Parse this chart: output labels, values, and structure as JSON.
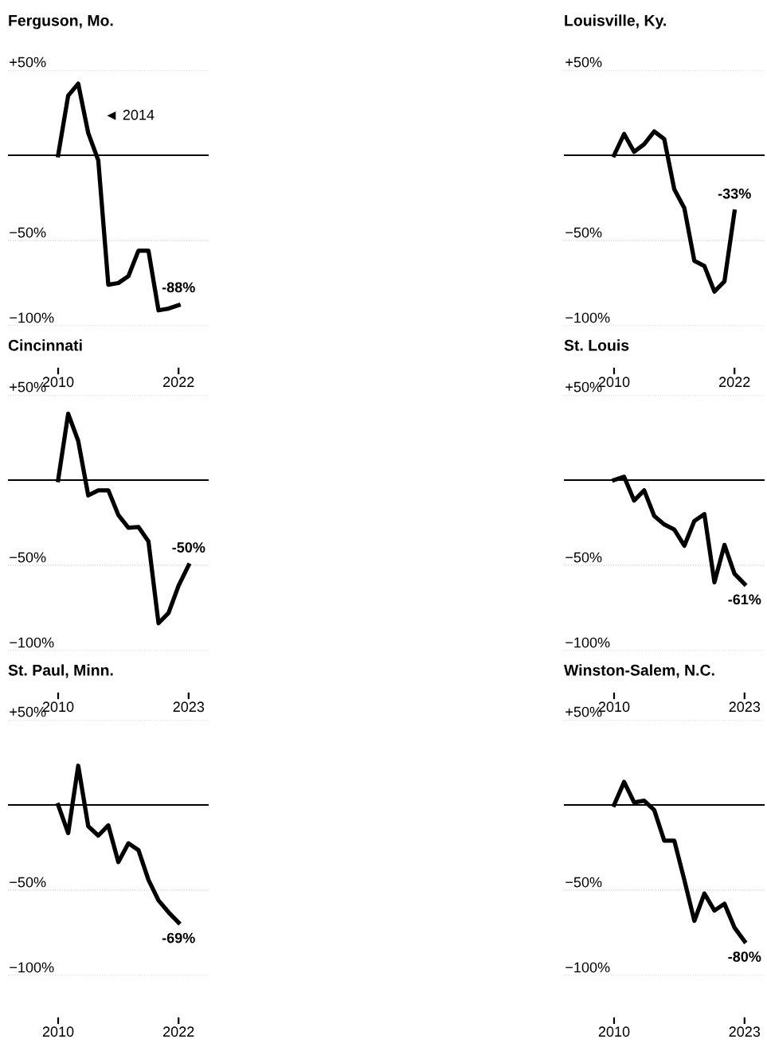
{
  "chart_data": [
    {
      "type": "line",
      "title": "Ferguson, Mo.",
      "x": [
        2010,
        2011,
        2012,
        2013,
        2014,
        2015,
        2016,
        2017,
        2018,
        2019,
        2020,
        2021,
        2022
      ],
      "xlim": [
        2005,
        2025
      ],
      "xticks": [
        2010,
        2022
      ],
      "ylim": [
        -100,
        50
      ],
      "yticks": [
        {
          "value": 50,
          "label": "+50%"
        },
        {
          "value": -50,
          "label": "−50%"
        },
        {
          "value": -100,
          "label": "−100%"
        }
      ],
      "grid": "y",
      "ref_lines": [
        {
          "axis": "y",
          "value": 0,
          "color": "#000000"
        }
      ],
      "annotations": [
        "◄ 2014"
      ],
      "series": [
        {
          "color": "#000000",
          "values": [
            0,
            35,
            42,
            13,
            -3,
            -76,
            -75,
            -71,
            -56,
            -56,
            -91,
            -90,
            -88
          ],
          "value_labels": [
            null,
            null,
            null,
            null,
            null,
            null,
            null,
            null,
            null,
            null,
            null,
            null,
            "-88%"
          ]
        }
      ]
    },
    {
      "type": "line",
      "title": "Louisville, Ky.",
      "x": [
        2010,
        2011,
        2012,
        2013,
        2014,
        2015,
        2016,
        2017,
        2018,
        2019,
        2020,
        2021,
        2022
      ],
      "xlim": [
        2005,
        2025
      ],
      "xticks": [
        2010,
        2022
      ],
      "ylim": [
        -100,
        50
      ],
      "yticks": [
        {
          "value": 50,
          "label": "+50%"
        },
        {
          "value": -50,
          "label": "−50%"
        },
        {
          "value": -100,
          "label": "−100%"
        }
      ],
      "grid": "y",
      "ref_lines": [
        {
          "axis": "y",
          "value": 0,
          "color": "#000000"
        }
      ],
      "series": [
        {
          "color": "#000000",
          "values": [
            0,
            12.5,
            2,
            6.5,
            14,
            9.5,
            -20,
            -31,
            -62,
            -65,
            -80,
            -74,
            -33
          ],
          "value_labels": [
            null,
            null,
            null,
            null,
            null,
            null,
            null,
            null,
            null,
            null,
            null,
            null,
            "-33%"
          ]
        }
      ]
    },
    {
      "type": "line",
      "title": "Cincinnati",
      "x": [
        2010,
        2011,
        2012,
        2013,
        2014,
        2015,
        2016,
        2017,
        2018,
        2019,
        2020,
        2021,
        2022,
        2023
      ],
      "xlim": [
        2005,
        2025
      ],
      "xticks": [
        2010,
        2023
      ],
      "ylim": [
        -100,
        50
      ],
      "yticks": [
        {
          "value": 50,
          "label": "+50%"
        },
        {
          "value": -50,
          "label": "−50%"
        },
        {
          "value": -100,
          "label": "−100%"
        }
      ],
      "grid": "y",
      "ref_lines": [
        {
          "axis": "y",
          "value": 0,
          "color": "#000000"
        }
      ],
      "series": [
        {
          "color": "#000000",
          "values": [
            0,
            39,
            23,
            -9,
            -6,
            -6,
            -20.5,
            -28,
            -27.5,
            -36,
            -84,
            -78,
            -62,
            -50
          ],
          "value_labels": [
            null,
            null,
            null,
            null,
            null,
            null,
            null,
            null,
            null,
            null,
            null,
            null,
            null,
            "-50%"
          ]
        }
      ]
    },
    {
      "type": "line",
      "title": "St. Louis",
      "x": [
        2010,
        2011,
        2012,
        2013,
        2014,
        2015,
        2016,
        2017,
        2018,
        2019,
        2020,
        2021,
        2022,
        2023
      ],
      "xlim": [
        2005,
        2025
      ],
      "xticks": [
        2010,
        2023
      ],
      "ylim": [
        -100,
        50
      ],
      "yticks": [
        {
          "value": 50,
          "label": "+50%"
        },
        {
          "value": -50,
          "label": "−50%"
        },
        {
          "value": -100,
          "label": "−100%"
        }
      ],
      "grid": "y",
      "ref_lines": [
        {
          "axis": "y",
          "value": 0,
          "color": "#000000"
        }
      ],
      "series": [
        {
          "color": "#000000",
          "values": [
            0,
            2,
            -12,
            -6,
            -21,
            -26,
            -29,
            -38.5,
            -24,
            -20,
            -60,
            -38,
            -55,
            -61
          ],
          "value_labels": [
            null,
            null,
            null,
            null,
            null,
            null,
            null,
            null,
            null,
            null,
            null,
            null,
            null,
            "-61%"
          ]
        }
      ]
    },
    {
      "type": "line",
      "title": "St. Paul, Minn.",
      "x": [
        2010,
        2011,
        2012,
        2013,
        2014,
        2015,
        2016,
        2017,
        2018,
        2019,
        2020,
        2021,
        2022
      ],
      "xlim": [
        2005,
        2025
      ],
      "xticks": [
        2010,
        2022
      ],
      "ylim": [
        -100,
        50
      ],
      "yticks": [
        {
          "value": 50,
          "label": "+50%"
        },
        {
          "value": -50,
          "label": "−50%"
        },
        {
          "value": -100,
          "label": "−100%"
        }
      ],
      "grid": "y",
      "ref_lines": [
        {
          "axis": "y",
          "value": 0,
          "color": "#000000"
        }
      ],
      "series": [
        {
          "color": "#000000",
          "values": [
            0,
            -16.5,
            23,
            -12.5,
            -18,
            -12,
            -33.5,
            -22.5,
            -26.5,
            -44,
            -56,
            -63,
            -69
          ],
          "value_labels": [
            null,
            null,
            null,
            null,
            null,
            null,
            null,
            null,
            null,
            null,
            null,
            null,
            "-69%"
          ]
        }
      ]
    },
    {
      "type": "line",
      "title": "Winston-Salem, N.C.",
      "x": [
        2010,
        2011,
        2012,
        2013,
        2014,
        2015,
        2016,
        2017,
        2018,
        2019,
        2020,
        2021,
        2022,
        2023
      ],
      "xlim": [
        2005,
        2025
      ],
      "xticks": [
        2010,
        2023
      ],
      "ylim": [
        -100,
        50
      ],
      "yticks": [
        {
          "value": 50,
          "label": "+50%"
        },
        {
          "value": -50,
          "label": "−50%"
        },
        {
          "value": -100,
          "label": "−100%"
        }
      ],
      "grid": "y",
      "ref_lines": [
        {
          "axis": "y",
          "value": 0,
          "color": "#000000"
        }
      ],
      "series": [
        {
          "color": "#000000",
          "values": [
            0,
            13.5,
            1.5,
            2.5,
            -3,
            -21,
            -21,
            -44,
            -68,
            -52,
            -62,
            -58,
            -72,
            -80
          ],
          "value_labels": [
            null,
            null,
            null,
            null,
            null,
            null,
            null,
            null,
            null,
            null,
            null,
            null,
            null,
            "-80%"
          ]
        }
      ]
    }
  ]
}
